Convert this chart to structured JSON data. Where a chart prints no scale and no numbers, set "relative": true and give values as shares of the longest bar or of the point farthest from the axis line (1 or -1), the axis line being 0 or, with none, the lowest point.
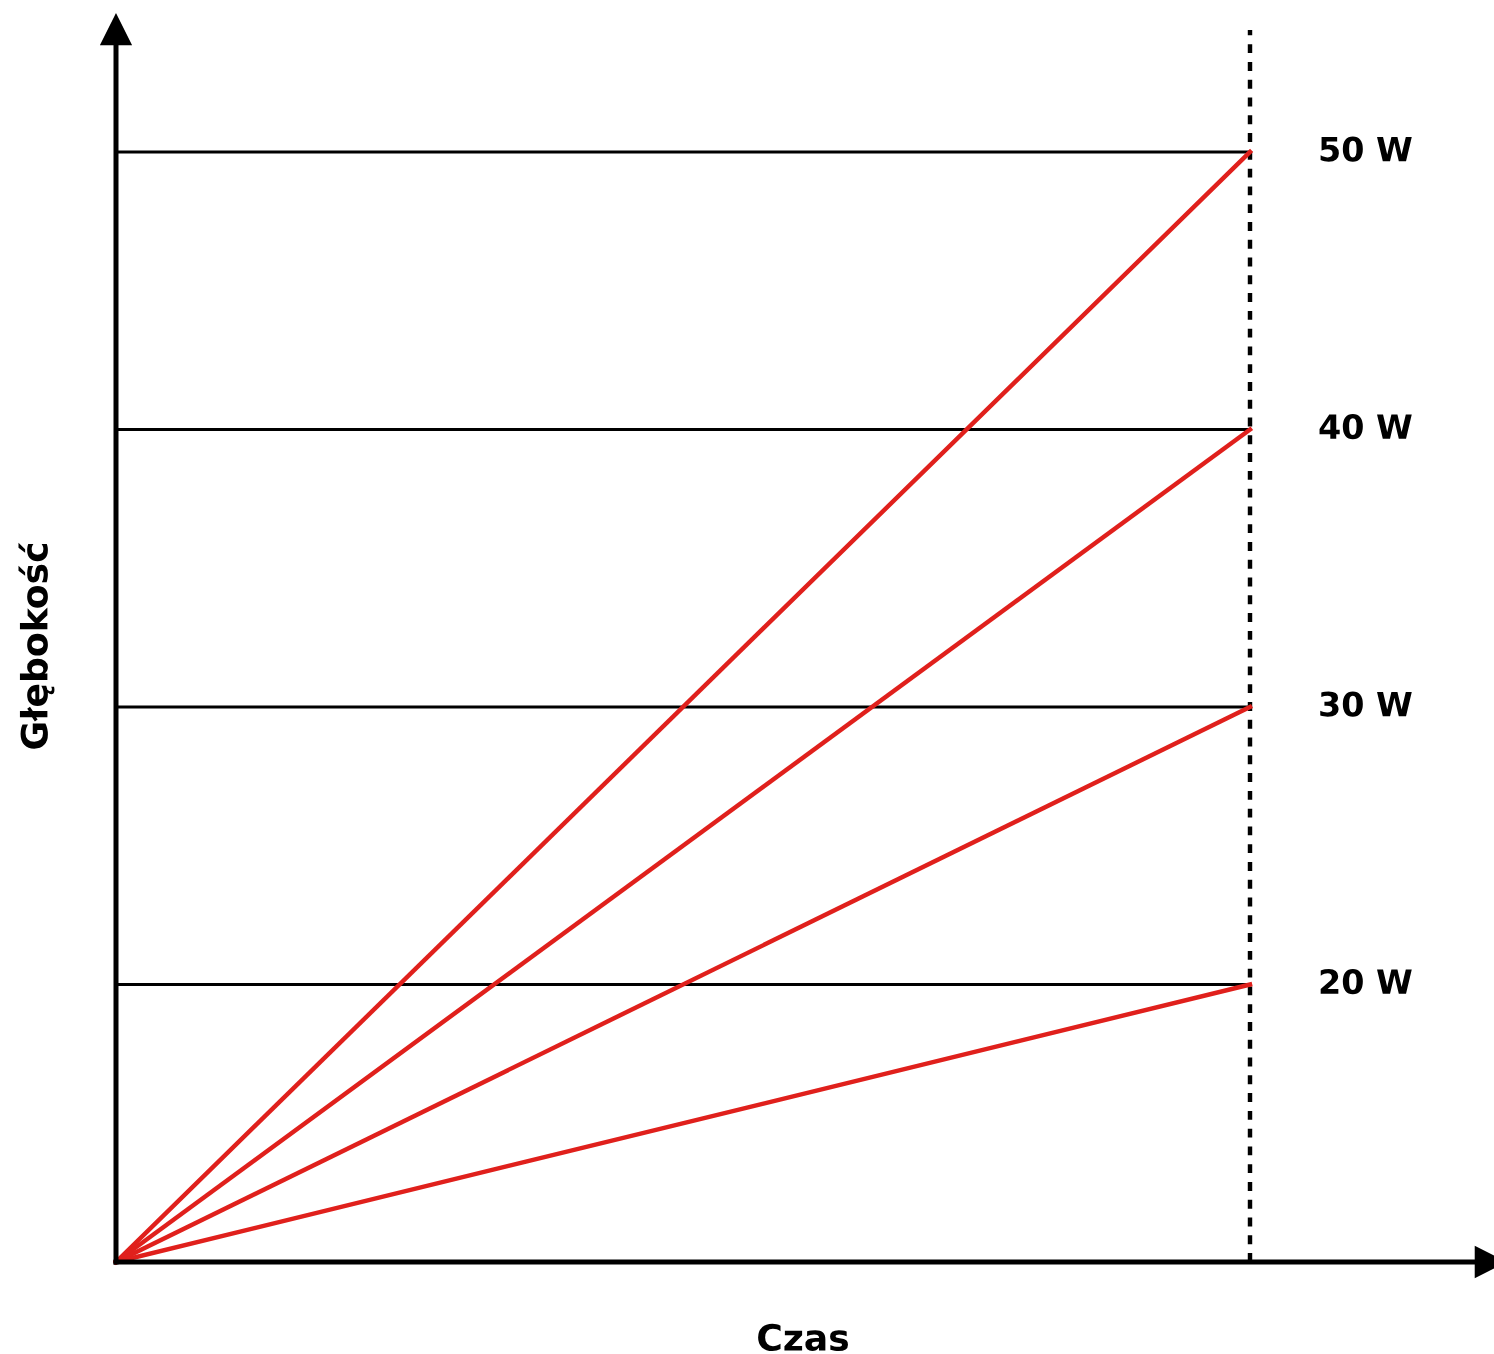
{
  "chart_data": {
    "type": "line",
    "relative": true,
    "xlabel": "Czas",
    "ylabel": "Głębokość",
    "categories": [
      null,
      null
    ],
    "series": [
      {
        "name": "50 W",
        "color": "#e0201c",
        "values": [
          0,
          1
        ]
      },
      {
        "name": "40 W",
        "color": "#e0201c",
        "values": [
          0,
          0.75
        ]
      },
      {
        "name": "30 W",
        "color": "#e0201c",
        "values": [
          0,
          0.5
        ]
      },
      {
        "name": "20 W",
        "color": "#e0201c",
        "values": [
          0,
          0.25
        ]
      }
    ],
    "ref_lines": [
      {
        "axis": "y",
        "value": 1,
        "color": "#000000",
        "line_style": "solid"
      },
      {
        "axis": "y",
        "value": 0.75,
        "color": "#000000",
        "line_style": "solid"
      },
      {
        "axis": "y",
        "value": 0.5,
        "color": "#000000",
        "line_style": "solid"
      },
      {
        "axis": "y",
        "value": 0.25,
        "color": "#000000",
        "line_style": "solid"
      }
    ],
    "marker": "none",
    "line_style": "solid"
  }
}
